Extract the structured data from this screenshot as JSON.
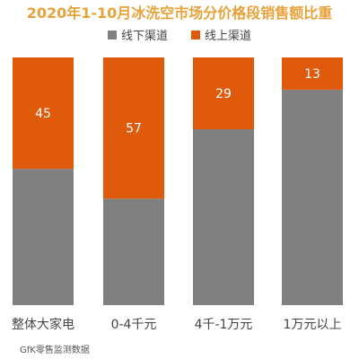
{
  "chart_data": {
    "type": "bar",
    "stacked": true,
    "title": "2020年1-10月冰洗空市场分价格段销售额比重",
    "categories": [
      "整体大家电",
      "0-4千元",
      "4千-1万元",
      "1万元以上"
    ],
    "series": [
      {
        "name": "线下渠道",
        "color": "#808080",
        "values": [
          55,
          43,
          71,
          87
        ]
      },
      {
        "name": "线上渠道",
        "color": "#e05a0c",
        "values": [
          45,
          57,
          29,
          13
        ]
      }
    ],
    "data_labels": [
      "45",
      "57",
      "29",
      "13"
    ],
    "ylim": [
      0,
      100
    ],
    "legend_position": "top",
    "grid": false
  },
  "source": "GfK零售监测数据"
}
